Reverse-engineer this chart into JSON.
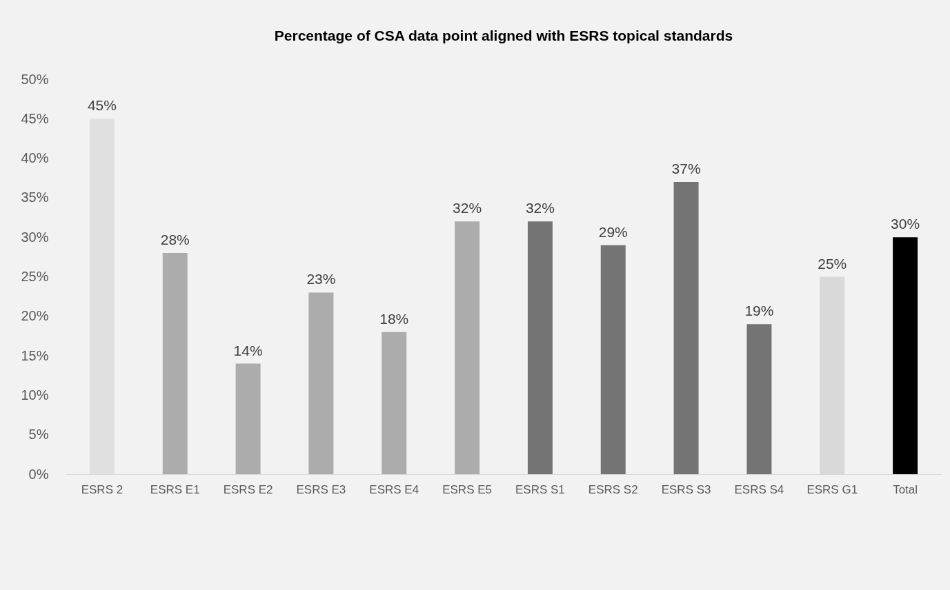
{
  "chart_data": {
    "type": "bar",
    "title": "Percentage of CSA data point aligned with ESRS topical standards",
    "categories": [
      "ESRS 2",
      "ESRS E1",
      "ESRS E2",
      "ESRS E3",
      "ESRS E4",
      "ESRS E5",
      "ESRS S1",
      "ESRS S2",
      "ESRS S3",
      "ESRS S4",
      "ESRS G1",
      "Total"
    ],
    "values": [
      45,
      28,
      14,
      23,
      18,
      32,
      32,
      29,
      37,
      19,
      25,
      30
    ],
    "colors": [
      "#e0e0e0",
      "#acacac",
      "#acacac",
      "#acacac",
      "#acacac",
      "#acacac",
      "#747474",
      "#747474",
      "#747474",
      "#747474",
      "#d9d9d9",
      "#000000"
    ],
    "value_labels": [
      "45%",
      "28%",
      "14%",
      "23%",
      "18%",
      "32%",
      "32%",
      "29%",
      "37%",
      "19%",
      "25%",
      "30%"
    ],
    "ylim": [
      0,
      50
    ],
    "yticks": [
      {
        "value": 0,
        "label": "0%"
      },
      {
        "value": 5,
        "label": "5%"
      },
      {
        "value": 10,
        "label": "10%"
      },
      {
        "value": 15,
        "label": "15%"
      },
      {
        "value": 20,
        "label": "20%"
      },
      {
        "value": 25,
        "label": "25%"
      },
      {
        "value": 30,
        "label": "30%"
      },
      {
        "value": 35,
        "label": "35%"
      },
      {
        "value": 40,
        "label": "40%"
      },
      {
        "value": 45,
        "label": "45%"
      },
      {
        "value": 50,
        "label": "50%"
      }
    ],
    "grid": false,
    "legend": false
  }
}
